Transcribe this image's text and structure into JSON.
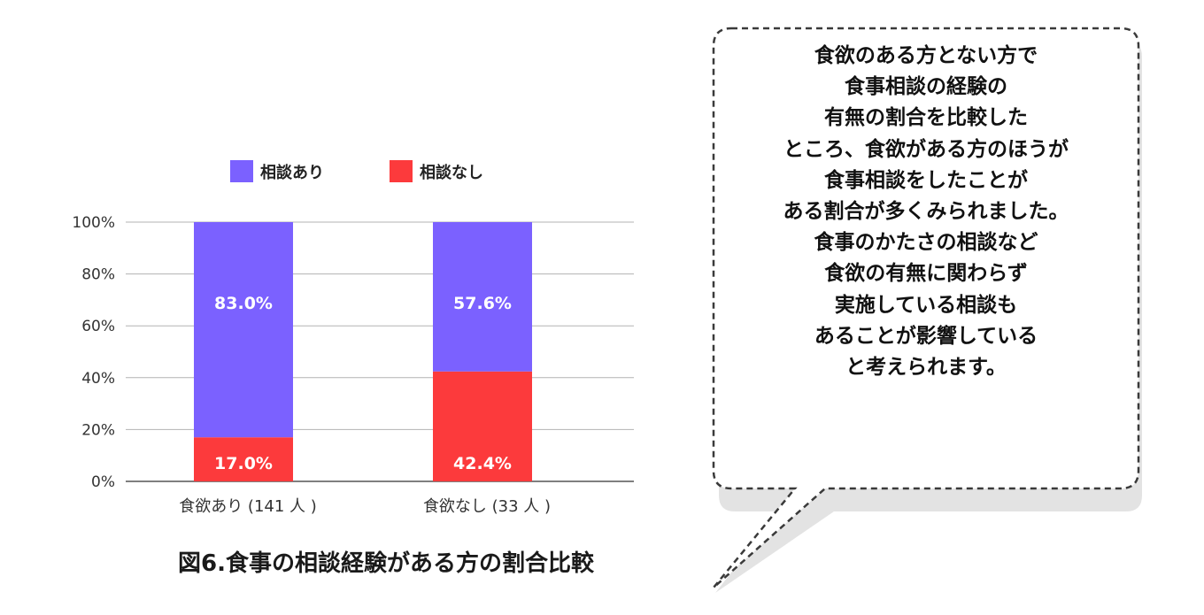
{
  "chart_data": {
    "type": "bar",
    "stacked": true,
    "percent": true,
    "title": "図6.食事の相談経験がある方の割合比較",
    "categories": [
      "食欲あり (141 人 )",
      "食欲なし (33 人 )"
    ],
    "series": [
      {
        "name": "相談なし",
        "values": [
          17.0,
          42.4
        ],
        "labels": [
          "17.0%",
          "42.4%"
        ],
        "color": "#fc3a3c"
      },
      {
        "name": "相談あり",
        "values": [
          83.0,
          57.6
        ],
        "labels": [
          "83.0%",
          "57.6%"
        ],
        "color": "#7b61ff"
      }
    ],
    "legend": [
      "相談あり",
      "相談なし"
    ],
    "legend_position": "top",
    "ylim": [
      0,
      100
    ],
    "yticks": [
      "0%",
      "20%",
      "40%",
      "60%",
      "80%",
      "100%"
    ],
    "grid": true
  },
  "callout": {
    "lines": [
      "食欲のある方とない方で",
      "食事相談の経験の",
      "有無の割合を比較した",
      "ところ、食欲がある方のほうが",
      "食事相談をしたことが",
      "ある割合が多くみられました。",
      "食事のかたさの相談など",
      "食欲の有無に関わらず",
      "実施している相談も",
      "あることが影響している",
      "と考えられます。"
    ]
  },
  "colors": {
    "grid": "#b3b3b3",
    "axis": "#555555",
    "bubble_shadow": "#e3e3e3",
    "bubble_border": "#3a3a3a"
  }
}
